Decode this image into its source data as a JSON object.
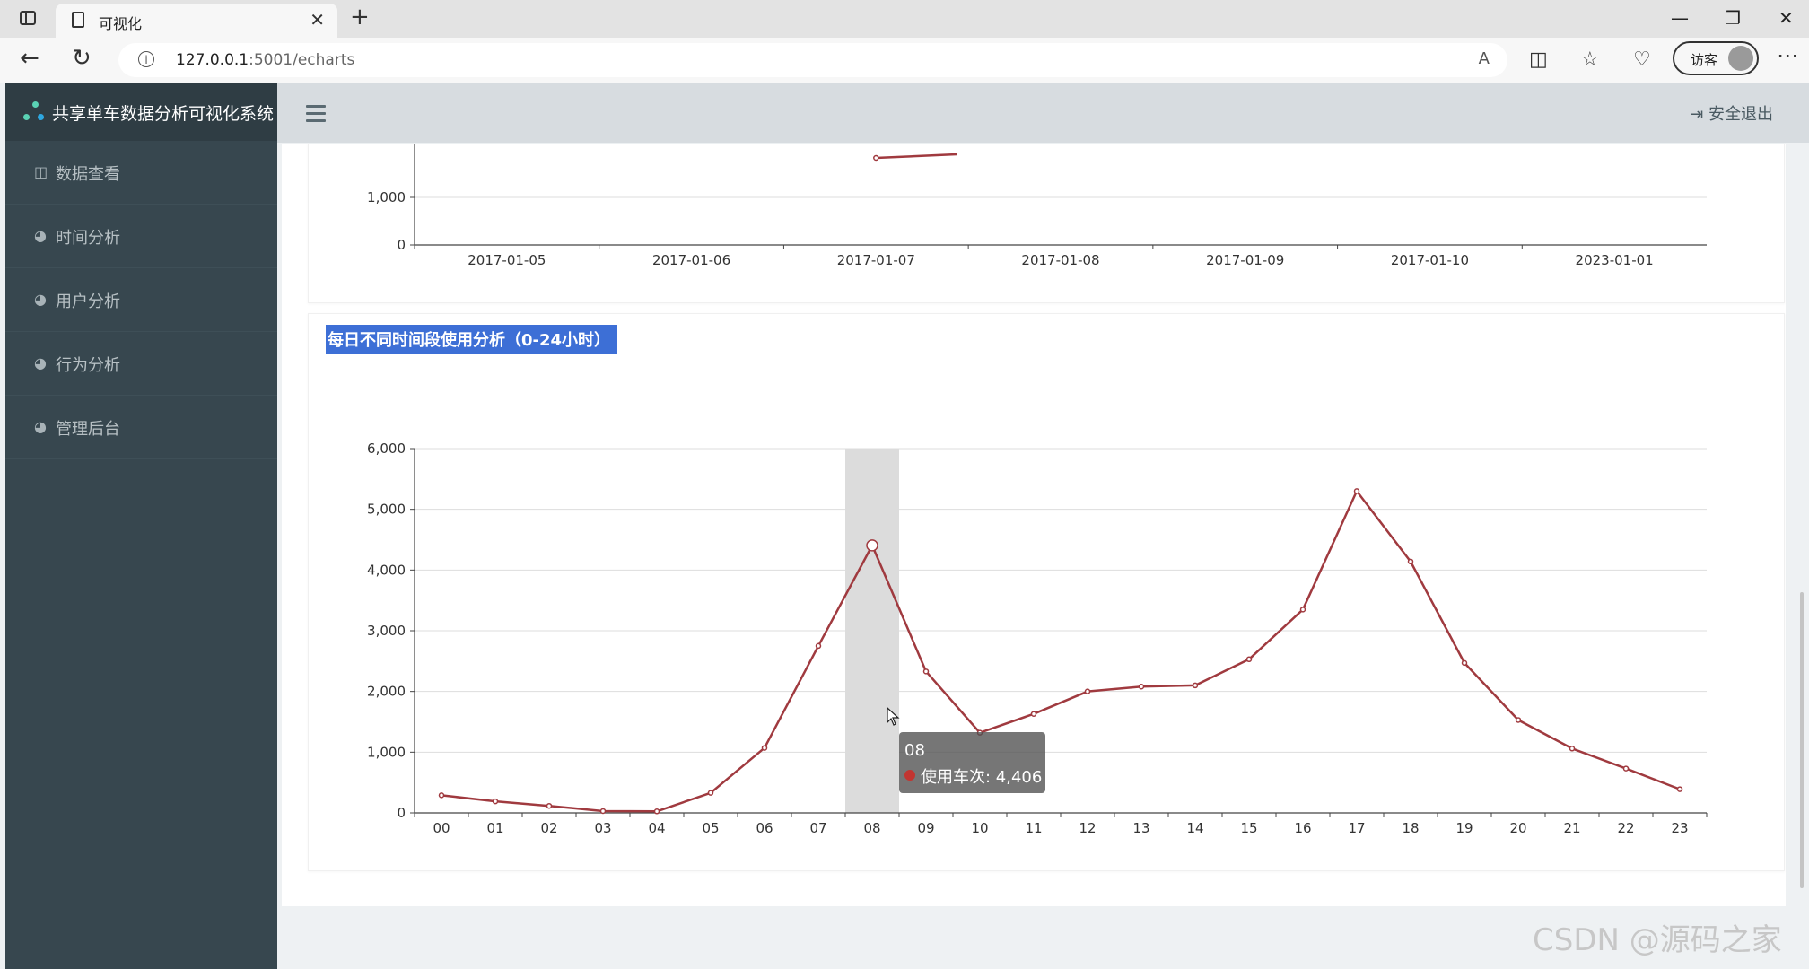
{
  "browser": {
    "tab_title": "可视化",
    "url_host": "127.0.0.1",
    "url_rest": ":5001/echarts",
    "guest_label": "访客"
  },
  "app": {
    "brand": "共享单车数据分析可视化系统",
    "menu": [
      {
        "label": "数据查看",
        "icon": "table-icon"
      },
      {
        "label": "时间分析",
        "icon": "dashboard-icon"
      },
      {
        "label": "用户分析",
        "icon": "dashboard-icon"
      },
      {
        "label": "行为分析",
        "icon": "dashboard-icon"
      },
      {
        "label": "管理后台",
        "icon": "dashboard-icon"
      }
    ],
    "logout_label": "安全退出",
    "colors": {
      "sidebar": "#37474f",
      "line": "#a03a3f",
      "title_highlight": "#3d6fd6"
    }
  },
  "chart_data": [
    {
      "type": "line",
      "partially_visible": true,
      "categories": [
        "2017-01-05",
        "2017-01-06",
        "2017-01-07",
        "2017-01-08",
        "2017-01-09",
        "2017-01-10",
        "2023-01-01"
      ],
      "yticks": [
        "0",
        "1,000"
      ],
      "visible_segment": {
        "from": "2017-01-07",
        "value_at_top": 1830
      }
    },
    {
      "type": "line",
      "title": "每日不同时间段使用分析（0-24小时）",
      "categories": [
        "00",
        "01",
        "02",
        "03",
        "04",
        "05",
        "06",
        "07",
        "08",
        "09",
        "10",
        "11",
        "12",
        "13",
        "14",
        "15",
        "16",
        "17",
        "18",
        "19",
        "20",
        "21",
        "22",
        "23"
      ],
      "series": [
        {
          "name": "使用车次",
          "values": [
            290,
            190,
            115,
            30,
            25,
            330,
            1070,
            2750,
            4406,
            2330,
            1320,
            1630,
            2000,
            2080,
            2100,
            2530,
            3350,
            5300,
            4140,
            2470,
            1530,
            1060,
            730,
            390
          ]
        }
      ],
      "ylim": [
        0,
        6000
      ],
      "yticks": [
        "0",
        "1,000",
        "2,000",
        "3,000",
        "4,000",
        "5,000",
        "6,000"
      ],
      "highlight_index": 8,
      "tooltip": {
        "category": "08",
        "series_name": "使用车次",
        "value_text": "4,406"
      }
    }
  ],
  "watermark": "CSDN @源码之家"
}
